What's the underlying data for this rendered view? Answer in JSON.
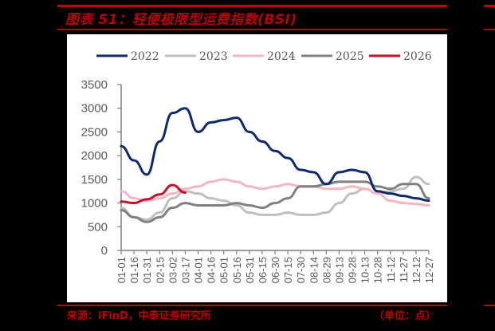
{
  "header": {
    "title": "图表 51：轻便极限型运费指数(BSI)"
  },
  "footer": {
    "source": "来源：iFinD，中泰证券研究所",
    "unit": "（单位：点）"
  },
  "colors": {
    "accent": "#c00000",
    "background": "#000000",
    "panel": "#ffffff",
    "axis": "#7f7f7f",
    "tick_text": "#595959"
  },
  "chart_data": {
    "type": "line",
    "title": "轻便极限型运费指数(BSI)",
    "xlabel": "",
    "ylabel": "点",
    "ylim": [
      0,
      3500
    ],
    "yticks": [
      0,
      500,
      1000,
      1500,
      2000,
      2500,
      3000,
      3500
    ],
    "grid": false,
    "legend_position": "top",
    "categories": [
      "01-01",
      "01-16",
      "01-31",
      "02-15",
      "03-02",
      "03-17",
      "04-01",
      "04-16",
      "05-01",
      "05-16",
      "05-31",
      "06-15",
      "06-30",
      "07-15",
      "07-30",
      "08-14",
      "08-29",
      "09-13",
      "09-28",
      "10-13",
      "10-28",
      "11-12",
      "11-27",
      "12-12",
      "12-27"
    ],
    "series": [
      {
        "name": "2022",
        "color": "#0d2a6b",
        "values": [
          2200,
          1900,
          1600,
          2300,
          2900,
          3000,
          2500,
          2700,
          2750,
          2800,
          2500,
          2300,
          2100,
          1950,
          1700,
          1650,
          1400,
          1650,
          1700,
          1650,
          1250,
          1200,
          1150,
          1100,
          1050
        ]
      },
      {
        "name": "2023",
        "color": "#c0c0c0",
        "values": [
          900,
          700,
          650,
          800,
          1100,
          1250,
          1200,
          1100,
          1050,
          950,
          800,
          750,
          750,
          800,
          750,
          750,
          800,
          1000,
          1200,
          1300,
          1200,
          1250,
          1300,
          1550,
          1400
        ]
      },
      {
        "name": "2024",
        "color": "#f2b7c2",
        "values": [
          1250,
          1100,
          1050,
          1100,
          1200,
          1300,
          1350,
          1450,
          1500,
          1450,
          1350,
          1300,
          1350,
          1400,
          1350,
          1350,
          1300,
          1300,
          1350,
          1300,
          1200,
          1050,
          1000,
          980,
          950
        ]
      },
      {
        "name": "2025",
        "color": "#808080",
        "values": [
          850,
          700,
          600,
          700,
          900,
          1000,
          950,
          950,
          950,
          1000,
          950,
          900,
          1000,
          1100,
          1350,
          1350,
          1400,
          1450,
          1450,
          1450,
          1350,
          1300,
          1400,
          1400,
          1100
        ]
      },
      {
        "name": "2026",
        "color": "#c8102e",
        "values": [
          1030,
          1000,
          1080,
          1180,
          1380,
          1220
        ]
      }
    ]
  },
  "legend": {
    "items": [
      {
        "label": "2022",
        "color": "#0d2a6b"
      },
      {
        "label": "2023",
        "color": "#c0c0c0"
      },
      {
        "label": "2024",
        "color": "#f2b7c2"
      },
      {
        "label": "2025",
        "color": "#808080"
      },
      {
        "label": "2026",
        "color": "#c8102e"
      }
    ]
  }
}
